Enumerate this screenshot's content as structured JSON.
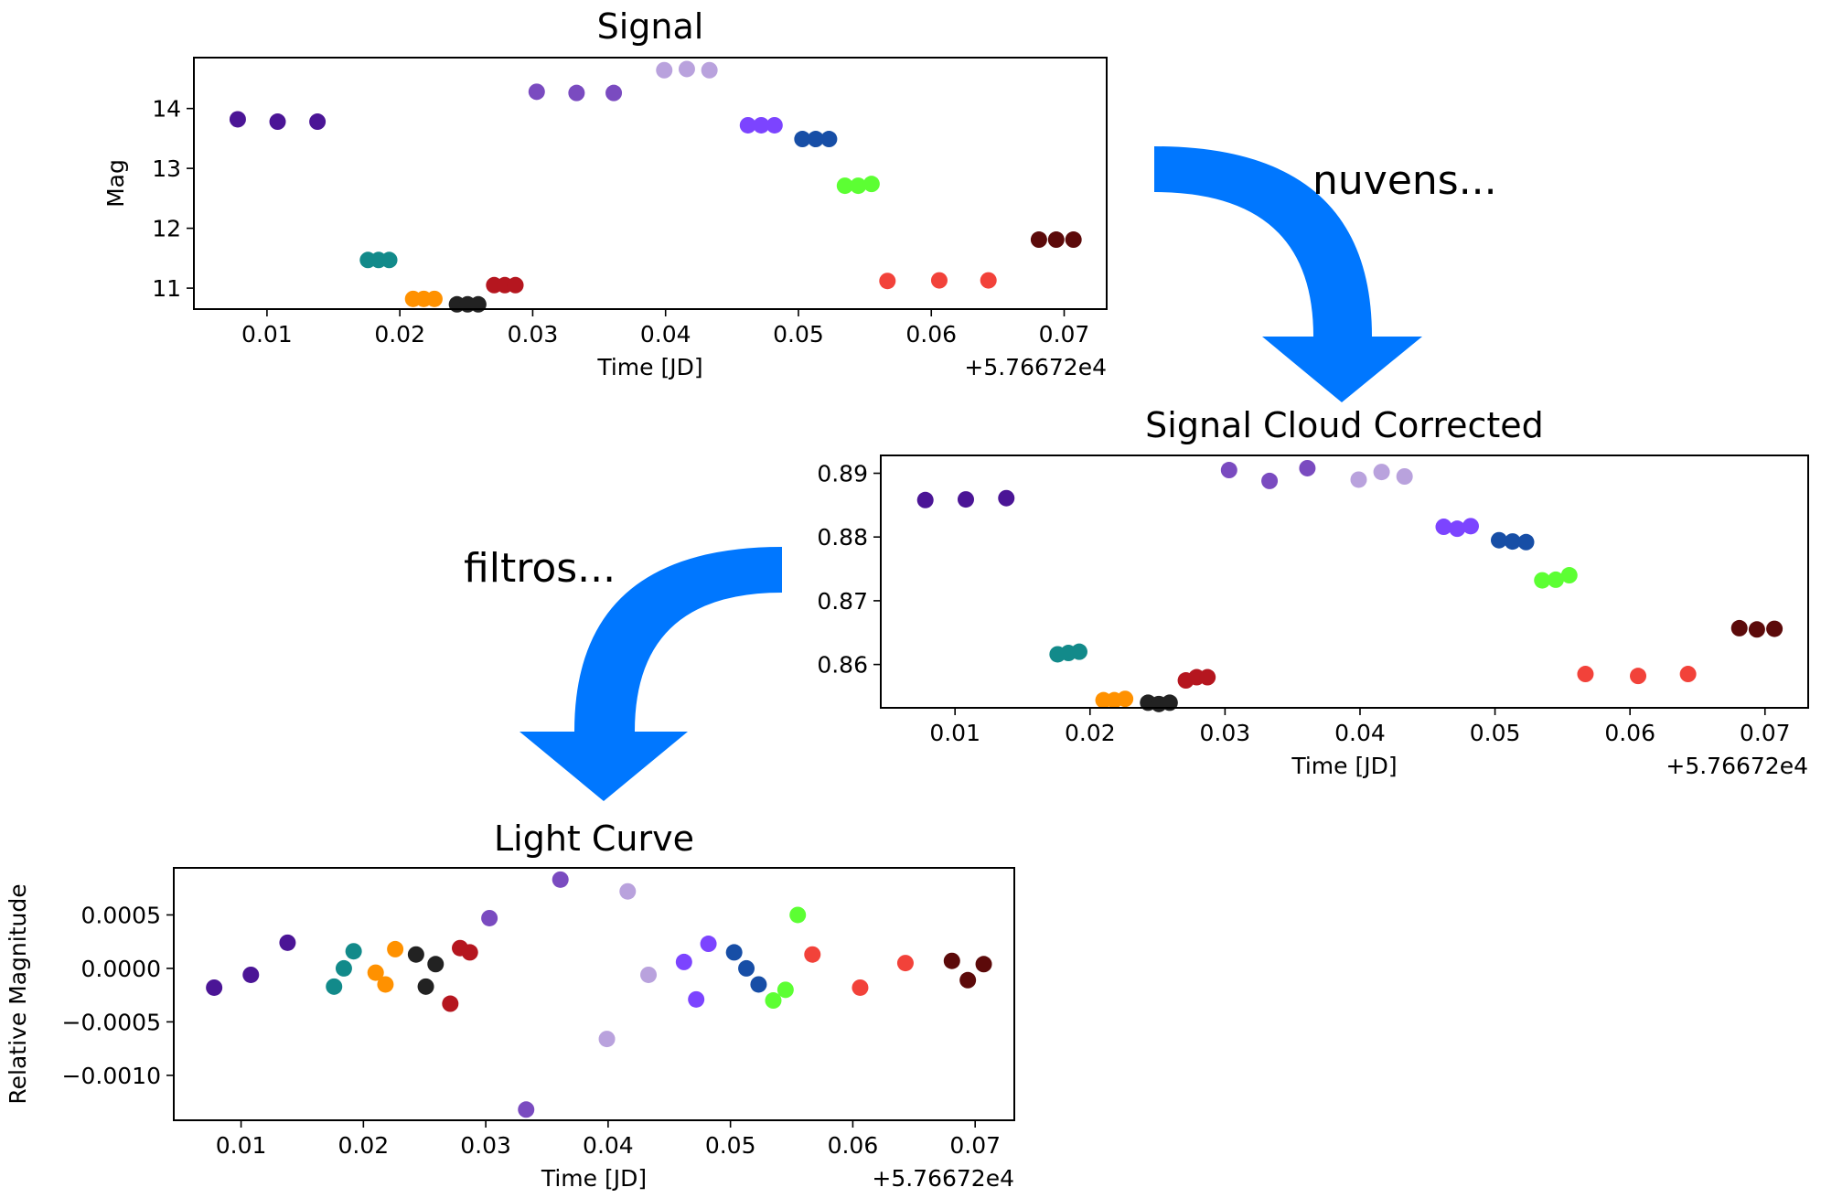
{
  "arrows": [
    {
      "label": "nuvens...",
      "color": "#0077ff"
    },
    {
      "label": "filtros...",
      "color": "#0077ff"
    }
  ],
  "chart_data": [
    {
      "type": "scatter",
      "title": "Signal",
      "xlabel": "Time [JD]",
      "ylabel": "Mag",
      "offset_text": "+5.76672e4",
      "xlim": [
        0.0045,
        0.0732
      ],
      "ylim": [
        10.65,
        14.85
      ],
      "xticks": [
        0.01,
        0.02,
        0.03,
        0.04,
        0.05,
        0.06,
        0.07
      ],
      "xtick_labels": [
        "0.01",
        "0.02",
        "0.03",
        "0.04",
        "0.05",
        "0.06",
        "0.07"
      ],
      "yticks": [
        11,
        12,
        13,
        14
      ],
      "ytick_labels": [
        "11",
        "12",
        "13",
        "14"
      ],
      "grid": false,
      "points": [
        {
          "x": 0.0078,
          "y": 13.82,
          "color": "#4b1596"
        },
        {
          "x": 0.0108,
          "y": 13.78,
          "color": "#4b1596"
        },
        {
          "x": 0.0138,
          "y": 13.78,
          "color": "#4b1596"
        },
        {
          "x": 0.0176,
          "y": 11.47,
          "color": "#128a8a"
        },
        {
          "x": 0.0184,
          "y": 11.47,
          "color": "#128a8a"
        },
        {
          "x": 0.0192,
          "y": 11.47,
          "color": "#128a8a"
        },
        {
          "x": 0.021,
          "y": 10.82,
          "color": "#ff9100"
        },
        {
          "x": 0.0218,
          "y": 10.82,
          "color": "#ff9100"
        },
        {
          "x": 0.0226,
          "y": 10.82,
          "color": "#ff9100"
        },
        {
          "x": 0.0243,
          "y": 10.73,
          "color": "#222222"
        },
        {
          "x": 0.0251,
          "y": 10.73,
          "color": "#222222"
        },
        {
          "x": 0.0259,
          "y": 10.73,
          "color": "#222222"
        },
        {
          "x": 0.0271,
          "y": 11.05,
          "color": "#b5161f"
        },
        {
          "x": 0.0279,
          "y": 11.05,
          "color": "#b5161f"
        },
        {
          "x": 0.0287,
          "y": 11.05,
          "color": "#b5161f"
        },
        {
          "x": 0.0303,
          "y": 14.28,
          "color": "#7a4bc0"
        },
        {
          "x": 0.0333,
          "y": 14.26,
          "color": "#7a4bc0"
        },
        {
          "x": 0.0361,
          "y": 14.26,
          "color": "#7a4bc0"
        },
        {
          "x": 0.0399,
          "y": 14.64,
          "color": "#b9a2dd"
        },
        {
          "x": 0.0416,
          "y": 14.66,
          "color": "#b9a2dd"
        },
        {
          "x": 0.0433,
          "y": 14.64,
          "color": "#b9a2dd"
        },
        {
          "x": 0.0462,
          "y": 13.72,
          "color": "#7c44ff"
        },
        {
          "x": 0.0472,
          "y": 13.72,
          "color": "#7c44ff"
        },
        {
          "x": 0.0482,
          "y": 13.72,
          "color": "#7c44ff"
        },
        {
          "x": 0.0503,
          "y": 13.49,
          "color": "#174ea6"
        },
        {
          "x": 0.0513,
          "y": 13.49,
          "color": "#174ea6"
        },
        {
          "x": 0.0523,
          "y": 13.49,
          "color": "#174ea6"
        },
        {
          "x": 0.0535,
          "y": 12.71,
          "color": "#5cff33"
        },
        {
          "x": 0.0545,
          "y": 12.71,
          "color": "#5cff33"
        },
        {
          "x": 0.0555,
          "y": 12.74,
          "color": "#5cff33"
        },
        {
          "x": 0.0567,
          "y": 11.12,
          "color": "#f2423a"
        },
        {
          "x": 0.0606,
          "y": 11.13,
          "color": "#f2423a"
        },
        {
          "x": 0.0643,
          "y": 11.13,
          "color": "#f2423a"
        },
        {
          "x": 0.0681,
          "y": 11.81,
          "color": "#5c0a0a"
        },
        {
          "x": 0.0694,
          "y": 11.81,
          "color": "#5c0a0a"
        },
        {
          "x": 0.0707,
          "y": 11.81,
          "color": "#5c0a0a"
        }
      ]
    },
    {
      "type": "scatter",
      "title": "Signal Cloud Corrected",
      "xlabel": "Time [JD]",
      "ylabel": "",
      "offset_text": "+5.76672e4",
      "xlim": [
        0.0045,
        0.0732
      ],
      "ylim": [
        0.8532,
        0.8928
      ],
      "xticks": [
        0.01,
        0.02,
        0.03,
        0.04,
        0.05,
        0.06,
        0.07
      ],
      "xtick_labels": [
        "0.01",
        "0.02",
        "0.03",
        "0.04",
        "0.05",
        "0.06",
        "0.07"
      ],
      "yticks": [
        0.86,
        0.87,
        0.88,
        0.89
      ],
      "ytick_labels": [
        "0.86",
        "0.87",
        "0.88",
        "0.89"
      ],
      "grid": false,
      "points": [
        {
          "x": 0.0078,
          "y": 0.8858,
          "color": "#4b1596"
        },
        {
          "x": 0.0108,
          "y": 0.8859,
          "color": "#4b1596"
        },
        {
          "x": 0.0138,
          "y": 0.8861,
          "color": "#4b1596"
        },
        {
          "x": 0.0176,
          "y": 0.8616,
          "color": "#128a8a"
        },
        {
          "x": 0.0184,
          "y": 0.8618,
          "color": "#128a8a"
        },
        {
          "x": 0.0192,
          "y": 0.862,
          "color": "#128a8a"
        },
        {
          "x": 0.021,
          "y": 0.8544,
          "color": "#ff9100"
        },
        {
          "x": 0.0218,
          "y": 0.8544,
          "color": "#ff9100"
        },
        {
          "x": 0.0226,
          "y": 0.8546,
          "color": "#ff9100"
        },
        {
          "x": 0.0243,
          "y": 0.854,
          "color": "#222222"
        },
        {
          "x": 0.0251,
          "y": 0.8538,
          "color": "#222222"
        },
        {
          "x": 0.0259,
          "y": 0.854,
          "color": "#222222"
        },
        {
          "x": 0.0271,
          "y": 0.8575,
          "color": "#b5161f"
        },
        {
          "x": 0.0279,
          "y": 0.858,
          "color": "#b5161f"
        },
        {
          "x": 0.0287,
          "y": 0.858,
          "color": "#b5161f"
        },
        {
          "x": 0.0303,
          "y": 0.8905,
          "color": "#7a4bc0"
        },
        {
          "x": 0.0333,
          "y": 0.8888,
          "color": "#7a4bc0"
        },
        {
          "x": 0.0361,
          "y": 0.8908,
          "color": "#7a4bc0"
        },
        {
          "x": 0.0399,
          "y": 0.889,
          "color": "#b9a2dd"
        },
        {
          "x": 0.0416,
          "y": 0.8902,
          "color": "#b9a2dd"
        },
        {
          "x": 0.0433,
          "y": 0.8895,
          "color": "#b9a2dd"
        },
        {
          "x": 0.0462,
          "y": 0.8816,
          "color": "#7c44ff"
        },
        {
          "x": 0.0472,
          "y": 0.8813,
          "color": "#7c44ff"
        },
        {
          "x": 0.0482,
          "y": 0.8817,
          "color": "#7c44ff"
        },
        {
          "x": 0.0503,
          "y": 0.8795,
          "color": "#174ea6"
        },
        {
          "x": 0.0513,
          "y": 0.8793,
          "color": "#174ea6"
        },
        {
          "x": 0.0523,
          "y": 0.8792,
          "color": "#174ea6"
        },
        {
          "x": 0.0535,
          "y": 0.8732,
          "color": "#5cff33"
        },
        {
          "x": 0.0545,
          "y": 0.8733,
          "color": "#5cff33"
        },
        {
          "x": 0.0555,
          "y": 0.874,
          "color": "#5cff33"
        },
        {
          "x": 0.0567,
          "y": 0.8585,
          "color": "#f2423a"
        },
        {
          "x": 0.0606,
          "y": 0.8582,
          "color": "#f2423a"
        },
        {
          "x": 0.0643,
          "y": 0.8585,
          "color": "#f2423a"
        },
        {
          "x": 0.0681,
          "y": 0.8657,
          "color": "#5c0a0a"
        },
        {
          "x": 0.0694,
          "y": 0.8655,
          "color": "#5c0a0a"
        },
        {
          "x": 0.0707,
          "y": 0.8656,
          "color": "#5c0a0a"
        }
      ]
    },
    {
      "type": "scatter",
      "title": "Light Curve",
      "xlabel": "Time [JD]",
      "ylabel": "Relative Magnitude",
      "offset_text": "+5.76672e4",
      "xlim": [
        0.0045,
        0.0732
      ],
      "ylim": [
        -0.00142,
        0.00094
      ],
      "xticks": [
        0.01,
        0.02,
        0.03,
        0.04,
        0.05,
        0.06,
        0.07
      ],
      "xtick_labels": [
        "0.01",
        "0.02",
        "0.03",
        "0.04",
        "0.05",
        "0.06",
        "0.07"
      ],
      "yticks": [
        -0.001,
        -0.0005,
        0.0,
        0.0005
      ],
      "ytick_labels": [
        "−0.0010",
        "−0.0005",
        "0.0000",
        "0.0005"
      ],
      "grid": false,
      "points": [
        {
          "x": 0.0078,
          "y": -0.00018,
          "color": "#4b1596"
        },
        {
          "x": 0.0108,
          "y": -6e-05,
          "color": "#4b1596"
        },
        {
          "x": 0.0138,
          "y": 0.00024,
          "color": "#4b1596"
        },
        {
          "x": 0.0176,
          "y": -0.00017,
          "color": "#128a8a"
        },
        {
          "x": 0.0184,
          "y": 0.0,
          "color": "#128a8a"
        },
        {
          "x": 0.0192,
          "y": 0.00016,
          "color": "#128a8a"
        },
        {
          "x": 0.021,
          "y": -4e-05,
          "color": "#ff9100"
        },
        {
          "x": 0.0218,
          "y": -0.00015,
          "color": "#ff9100"
        },
        {
          "x": 0.0226,
          "y": 0.00018,
          "color": "#ff9100"
        },
        {
          "x": 0.0243,
          "y": 0.00013,
          "color": "#222222"
        },
        {
          "x": 0.0251,
          "y": -0.00017,
          "color": "#222222"
        },
        {
          "x": 0.0259,
          "y": 4e-05,
          "color": "#222222"
        },
        {
          "x": 0.0271,
          "y": -0.00033,
          "color": "#b5161f"
        },
        {
          "x": 0.0279,
          "y": 0.00019,
          "color": "#b5161f"
        },
        {
          "x": 0.0287,
          "y": 0.00015,
          "color": "#b5161f"
        },
        {
          "x": 0.0303,
          "y": 0.00047,
          "color": "#7a4bc0"
        },
        {
          "x": 0.0333,
          "y": -0.00132,
          "color": "#7a4bc0"
        },
        {
          "x": 0.0361,
          "y": 0.00083,
          "color": "#7a4bc0"
        },
        {
          "x": 0.0399,
          "y": -0.00066,
          "color": "#b9a2dd"
        },
        {
          "x": 0.0416,
          "y": 0.00072,
          "color": "#b9a2dd"
        },
        {
          "x": 0.0433,
          "y": -6e-05,
          "color": "#b9a2dd"
        },
        {
          "x": 0.0462,
          "y": 6e-05,
          "color": "#7c44ff"
        },
        {
          "x": 0.0472,
          "y": -0.00029,
          "color": "#7c44ff"
        },
        {
          "x": 0.0482,
          "y": 0.00023,
          "color": "#7c44ff"
        },
        {
          "x": 0.0503,
          "y": 0.00015,
          "color": "#174ea6"
        },
        {
          "x": 0.0513,
          "y": 0.0,
          "color": "#174ea6"
        },
        {
          "x": 0.0523,
          "y": -0.00015,
          "color": "#174ea6"
        },
        {
          "x": 0.0535,
          "y": -0.0003,
          "color": "#5cff33"
        },
        {
          "x": 0.0545,
          "y": -0.0002,
          "color": "#5cff33"
        },
        {
          "x": 0.0555,
          "y": 0.0005,
          "color": "#5cff33"
        },
        {
          "x": 0.0567,
          "y": 0.00013,
          "color": "#f2423a"
        },
        {
          "x": 0.0606,
          "y": -0.00018,
          "color": "#f2423a"
        },
        {
          "x": 0.0643,
          "y": 5e-05,
          "color": "#f2423a"
        },
        {
          "x": 0.0681,
          "y": 7e-05,
          "color": "#5c0a0a"
        },
        {
          "x": 0.0694,
          "y": -0.00011,
          "color": "#5c0a0a"
        },
        {
          "x": 0.0707,
          "y": 4e-05,
          "color": "#5c0a0a"
        }
      ]
    }
  ]
}
